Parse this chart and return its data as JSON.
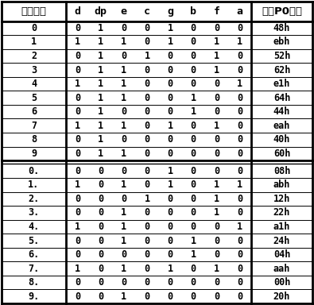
{
  "header_col0": "十进制数",
  "header_mid": "d  dp  e  c  g  b  f  a",
  "header_mid_labels": [
    "d",
    "dp",
    "e",
    "c",
    "g",
    "b",
    "f",
    "a"
  ],
  "header_col9": "对应P0口値",
  "rows_top": [
    [
      "0",
      "0",
      "1",
      "0",
      "0",
      "1",
      "0",
      "0",
      "0",
      "48h"
    ],
    [
      "1",
      "1",
      "1",
      "1",
      "0",
      "1",
      "0",
      "1",
      "1",
      "ebh"
    ],
    [
      "2",
      "0",
      "1",
      "0",
      "1",
      "0",
      "0",
      "1",
      "0",
      "52h"
    ],
    [
      "3",
      "0",
      "1",
      "1",
      "0",
      "0",
      "0",
      "1",
      "0",
      "62h"
    ],
    [
      "4",
      "1",
      "1",
      "1",
      "0",
      "0",
      "0",
      "0",
      "1",
      "e1h"
    ],
    [
      "5",
      "0",
      "1",
      "1",
      "0",
      "0",
      "1",
      "0",
      "0",
      "64h"
    ],
    [
      "6",
      "0",
      "1",
      "0",
      "0",
      "0",
      "1",
      "0",
      "0",
      "44h"
    ],
    [
      "7",
      "1",
      "1",
      "1",
      "0",
      "1",
      "0",
      "1",
      "0",
      "eah"
    ],
    [
      "8",
      "0",
      "1",
      "0",
      "0",
      "0",
      "0",
      "0",
      "0",
      "40h"
    ],
    [
      "9",
      "0",
      "1",
      "1",
      "0",
      "0",
      "0",
      "0",
      "0",
      "60h"
    ]
  ],
  "rows_bottom": [
    [
      "0.",
      "0",
      "0",
      "0",
      "0",
      "1",
      "0",
      "0",
      "0",
      "08h"
    ],
    [
      "1.",
      "1",
      "0",
      "1",
      "0",
      "1",
      "0",
      "1",
      "1",
      "abh"
    ],
    [
      "2.",
      "0",
      "0",
      "0",
      "1",
      "0",
      "0",
      "1",
      "0",
      "12h"
    ],
    [
      "3.",
      "0",
      "0",
      "1",
      "0",
      "0",
      "0",
      "1",
      "0",
      "22h"
    ],
    [
      "4.",
      "1",
      "0",
      "1",
      "0",
      "0",
      "0",
      "0",
      "1",
      "a1h"
    ],
    [
      "5.",
      "0",
      "0",
      "1",
      "0",
      "0",
      "1",
      "0",
      "0",
      "24h"
    ],
    [
      "6.",
      "0",
      "0",
      "0",
      "0",
      "0",
      "1",
      "0",
      "0",
      "04h"
    ],
    [
      "7.",
      "1",
      "0",
      "1",
      "0",
      "1",
      "0",
      "1",
      "0",
      "aah"
    ],
    [
      "8.",
      "0",
      "0",
      "0",
      "0",
      "0",
      "0",
      "0",
      "0",
      "00h"
    ],
    [
      "9.",
      "0",
      "0",
      "1",
      "0",
      "0",
      "0",
      "0",
      "0",
      "20h"
    ]
  ],
  "bg_color": "#ffffff",
  "border_color": "#000000",
  "text_color": "#000000",
  "header_fontsize": 9.5,
  "cell_fontsize": 8.5
}
